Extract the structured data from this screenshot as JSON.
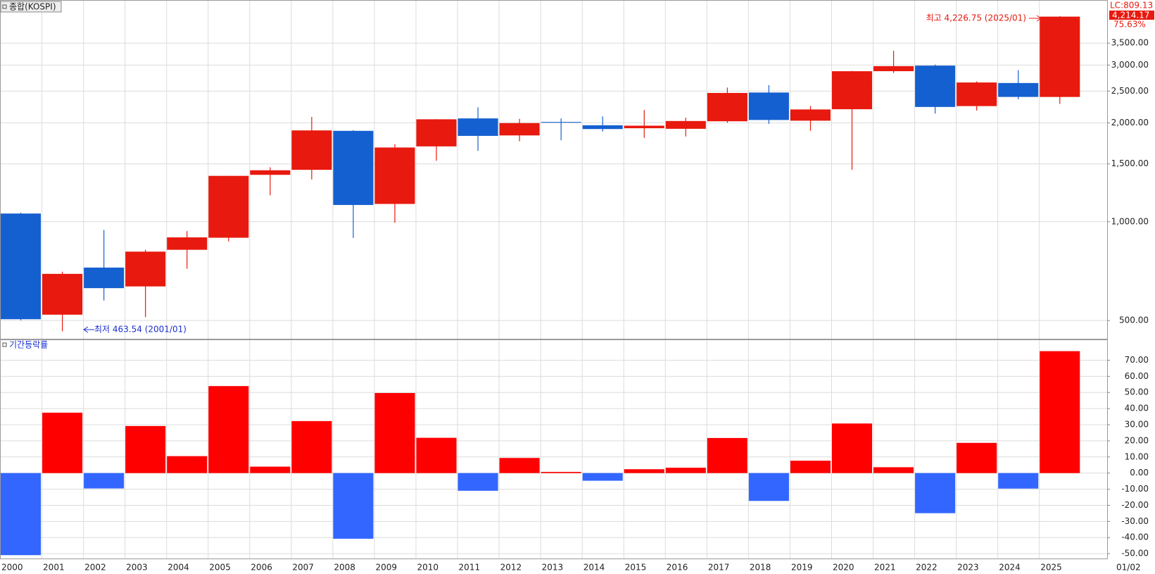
{
  "x_axis": {
    "categories": [
      "2000",
      "2001",
      "2002",
      "2003",
      "2004",
      "2005",
      "2006",
      "2007",
      "2008",
      "2009",
      "2010",
      "2011",
      "2012",
      "2013",
      "2014",
      "2015",
      "2016",
      "2017",
      "2018",
      "2019",
      "2020",
      "2021",
      "2022",
      "2023",
      "2024",
      "2025"
    ],
    "end_label": "01/02"
  },
  "chart_data": [
    {
      "type": "candlestick",
      "title": "종합(KOSPI)",
      "log_scale": true,
      "grid": true,
      "up_color": "#e8190e",
      "down_color": "#1560d0",
      "open": [
        1059.04,
        520.95,
        724.95,
        635.17,
        821.26,
        893.71,
        1389.27,
        1438.89,
        1891.45,
        1132.87,
        1696.14,
        2063.69,
        1831.69,
        2013.11,
        1967.19,
        1926.44,
        1918.76,
        2022.87,
        2474.86,
        2031.1,
        2201.21,
        2874.5,
        2988.77,
        2249.95,
        2645.47,
        2398.94
      ],
      "high": [
        1066.18,
        704.5,
        943.54,
        822.16,
        936.06,
        1379.37,
        1464.7,
        2085.45,
        1901.13,
        1723.17,
        2052.97,
        2231.47,
        2057.28,
        2063.28,
        2093.08,
        2189.54,
        2073.89,
        2561.63,
        2607.1,
        2252.05,
        2878.21,
        3316.08,
        3010.77,
        2675.8,
        2896.43,
        4226.75
      ],
      "low": [
        500.6,
        463.54,
        575.55,
        512.3,
        719.59,
        870.84,
        1203.86,
        1345.08,
        892.16,
        992.69,
        1532.68,
        1644.11,
        1758.99,
        1770.53,
        1881.73,
        1800.75,
        1817.97,
        2001.7,
        1985.95,
        1891.81,
        1439.43,
        2839.01,
        2134.77,
        2180.67,
        2360.18,
        2284.72
      ],
      "close": [
        504.62,
        693.7,
        627.55,
        810.71,
        895.92,
        1379.37,
        1434.46,
        1897.13,
        1124.47,
        1682.77,
        2051.0,
        1825.74,
        1997.05,
        2011.34,
        1915.59,
        1961.31,
        2026.46,
        2467.49,
        2041.04,
        2197.67,
        2873.47,
        2977.65,
        2236.4,
        2655.28,
        2399.49,
        4214.17
      ],
      "ylim": [
        440,
        4620
      ],
      "yticks": [
        {
          "value": 500,
          "label": "500.00"
        },
        {
          "value": 1000,
          "label": "1,000.00"
        },
        {
          "value": 1500,
          "label": "1,500.00"
        },
        {
          "value": 2000,
          "label": "2,000.00"
        },
        {
          "value": 2500,
          "label": "2,500.00"
        },
        {
          "value": 3000,
          "label": "3,000.00"
        },
        {
          "value": 3500,
          "label": "3,500.00"
        }
      ],
      "annotations": {
        "lc": "LC:809.13",
        "last": "4,214.17",
        "change": "75.63%",
        "high": "최고 4,226.75 (2025/01)",
        "low": "최저 463.54 (2001/01)"
      }
    },
    {
      "type": "bar",
      "title": "기간등락률",
      "grid": true,
      "up_color": "#ff0000",
      "down_color": "#3366ff",
      "values": [
        -50.92,
        37.47,
        -9.54,
        29.19,
        10.51,
        53.96,
        3.99,
        32.25,
        -40.73,
        49.65,
        21.88,
        -10.98,
        9.38,
        0.72,
        -4.76,
        2.39,
        3.32,
        21.76,
        -17.28,
        7.67,
        30.75,
        3.63,
        -24.89,
        18.73,
        -9.63,
        75.63
      ],
      "ylim": [
        -53,
        82
      ],
      "yticks": [
        {
          "value": -50,
          "label": "-50.00"
        },
        {
          "value": -40,
          "label": "-40.00"
        },
        {
          "value": -30,
          "label": "-30.00"
        },
        {
          "value": -20,
          "label": "-20.00"
        },
        {
          "value": -10,
          "label": "-10.00"
        },
        {
          "value": 0,
          "label": "0.00"
        },
        {
          "value": 10,
          "label": "10.00"
        },
        {
          "value": 20,
          "label": "20.00"
        },
        {
          "value": 30,
          "label": "30.00"
        },
        {
          "value": 40,
          "label": "40.00"
        },
        {
          "value": 50,
          "label": "50.00"
        },
        {
          "value": 60,
          "label": "60.00"
        },
        {
          "value": 70,
          "label": "70.00"
        }
      ]
    }
  ]
}
